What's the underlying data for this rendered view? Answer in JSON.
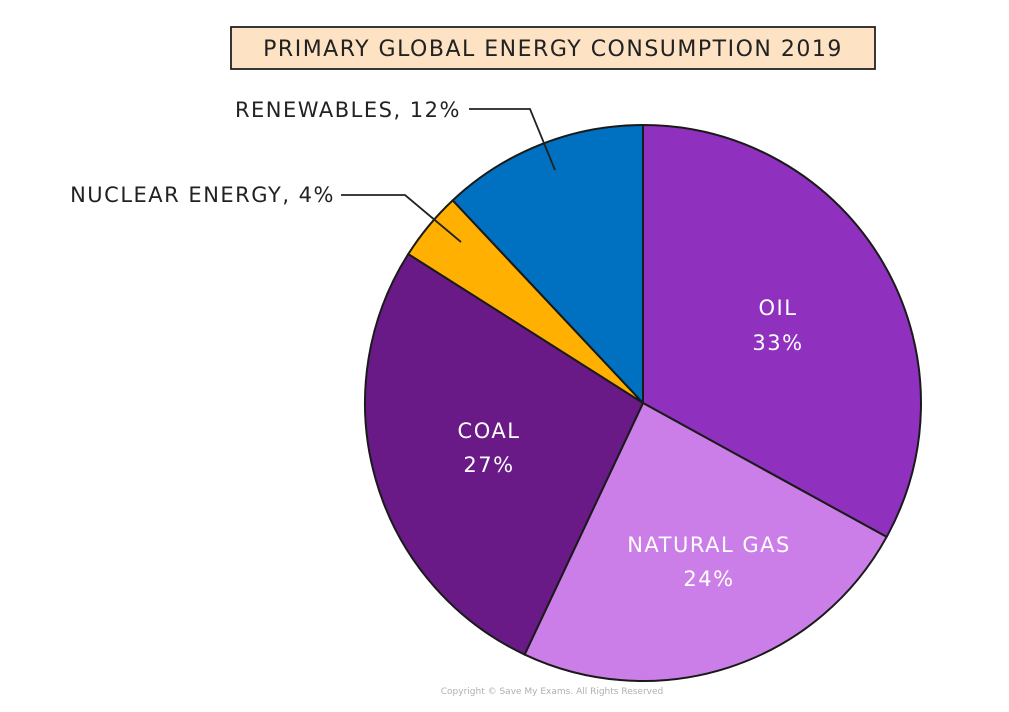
{
  "chart_data": {
    "type": "pie",
    "title": "PRIMARY GLOBAL ENERGY CONSUMPTION 2019",
    "unit": "%",
    "slices": [
      {
        "key": "oil",
        "name": "OIL",
        "value": 33,
        "label_text": "33%",
        "color": "#9030bf"
      },
      {
        "key": "natural-gas",
        "name": "NATURAL GAS",
        "value": 24,
        "label_text": "24%",
        "color": "#cc7ee8"
      },
      {
        "key": "coal",
        "name": "COAL",
        "value": 27,
        "label_text": "27%",
        "color": "#6a1a87"
      },
      {
        "key": "nuclear",
        "name": "NUCLEAR ENERGY",
        "value": 4,
        "label_text": "NUCLEAR ENERGY, 4%",
        "color": "#ffb000"
      },
      {
        "key": "renewables",
        "name": "RENEWABLES",
        "value": 12,
        "label_text": "RENEWABLES, 12%",
        "color": "#0070c0"
      }
    ]
  },
  "title_box_color": "#fde2c4",
  "copyright": "Copyright © Save My Exams. All Rights Reserved"
}
